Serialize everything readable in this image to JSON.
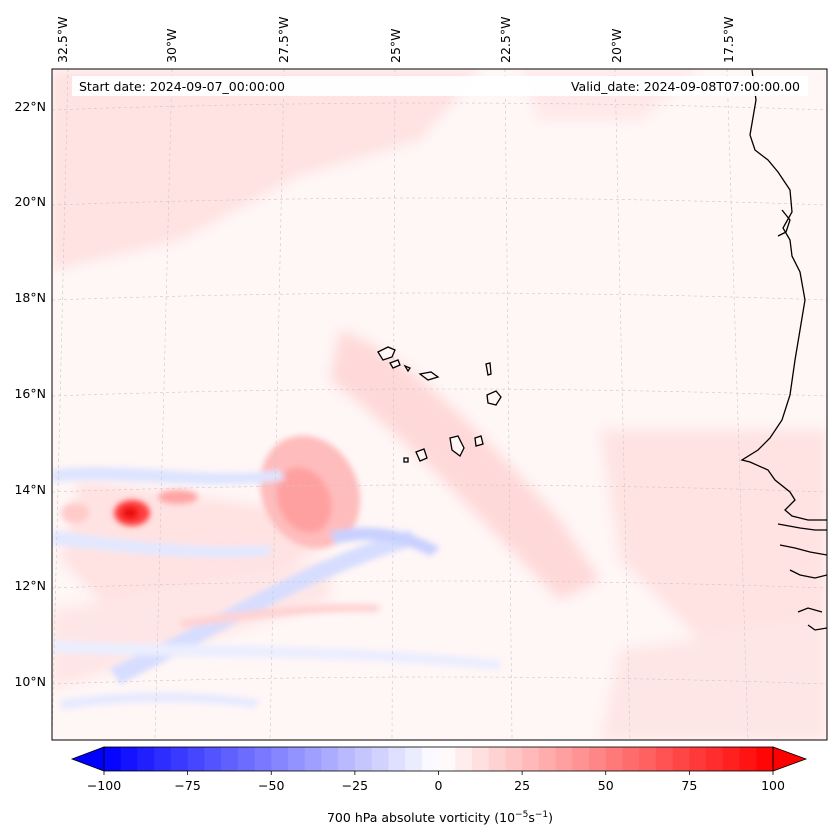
{
  "header": {
    "start_date": "Start date: 2024-09-07_00:00:00",
    "valid_date": "Valid_date: 2024-09-08T07:00:00.00"
  },
  "map": {
    "lon_labels": [
      "32.5°W",
      "30°W",
      "27.5°W",
      "25°W",
      "22.5°W",
      "20°W",
      "17.5°W"
    ],
    "lat_labels": [
      "22°N",
      "20°N",
      "18°N",
      "16°N",
      "14°N",
      "12°N",
      "10°N"
    ],
    "gridlines": true,
    "coastlines": true
  },
  "colorbar": {
    "label_prefix": "700 hPa absolute vorticity (10",
    "label_exp1": "−5",
    "label_mid": "s",
    "label_exp2": "−1",
    "label_suffix": ")",
    "ticks": [
      "−100",
      "−75",
      "−50",
      "−25",
      "0",
      "25",
      "50",
      "75",
      "100"
    ],
    "min": -100,
    "max": 100,
    "extend": "both",
    "colormap": "bwr",
    "colors": {
      "negative": "#0000ff",
      "zero": "#ffffff",
      "positive": "#ff0000"
    }
  }
}
